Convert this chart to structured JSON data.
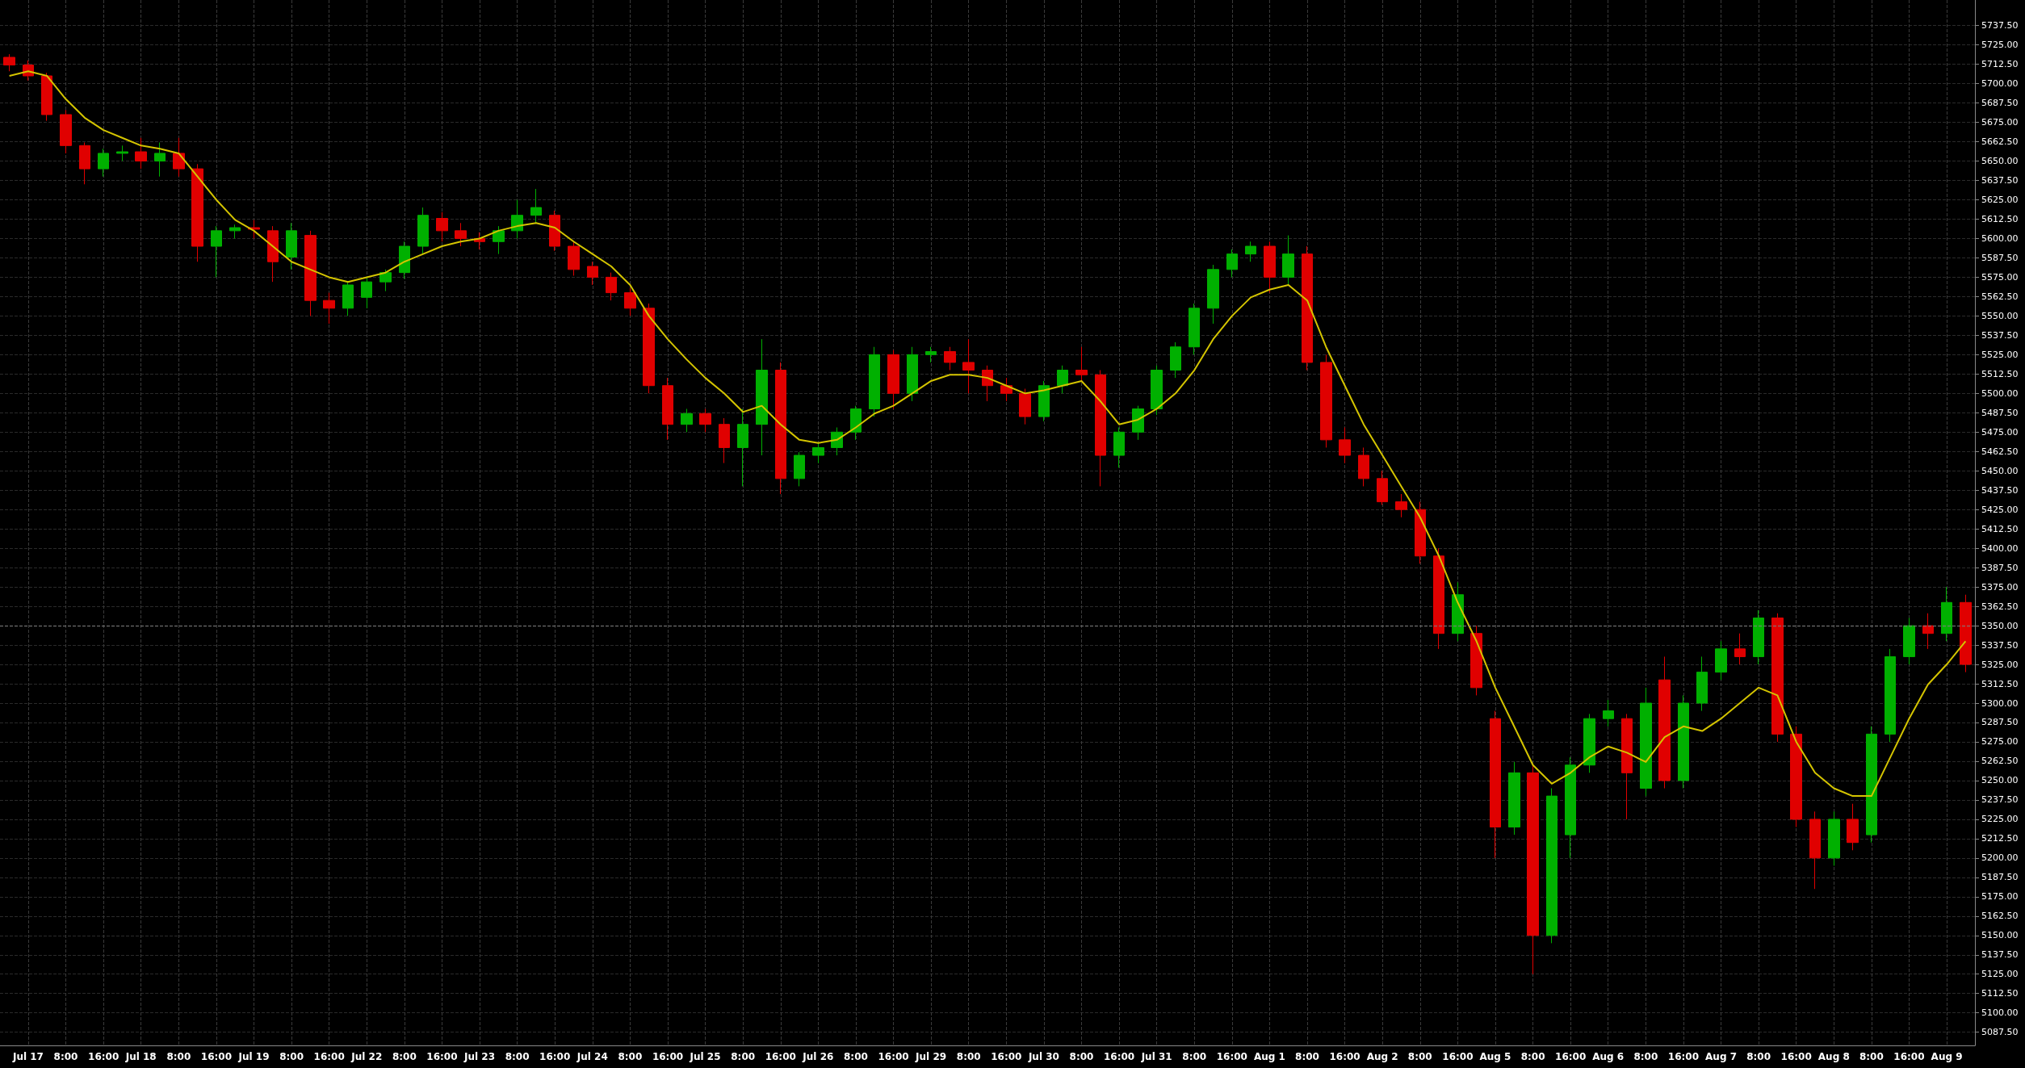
{
  "chart_data": {
    "type": "candlestick",
    "grid": true,
    "categories": [
      null,
      "Jul 17",
      null,
      "8:00",
      null,
      "16:00",
      null,
      "Jul 18",
      null,
      "8:00",
      null,
      "16:00",
      null,
      "Jul 19",
      null,
      "8:00",
      null,
      "16:00",
      null,
      "Jul 22",
      null,
      "8:00",
      null,
      "16:00",
      null,
      "Jul 23",
      null,
      "8:00",
      null,
      "16:00",
      null,
      "Jul 24",
      null,
      "8:00",
      null,
      "16:00",
      null,
      "Jul 25",
      null,
      "8:00",
      null,
      "16:00",
      null,
      "Jul 26",
      null,
      "8:00",
      null,
      "16:00",
      null,
      "Jul 29",
      null,
      "8:00",
      null,
      "16:00",
      null,
      "Jul 30",
      null,
      "8:00",
      null,
      "16:00",
      null,
      "Jul 31",
      null,
      "8:00",
      null,
      "16:00",
      null,
      "Aug 1",
      null,
      "8:00",
      null,
      "16:00",
      null,
      "Aug 2",
      null,
      "8:00",
      null,
      "16:00",
      null,
      "Aug 5",
      null,
      "8:00",
      null,
      "16:00",
      null,
      "Aug 6",
      null,
      "8:00",
      null,
      "16:00",
      null,
      "Aug 7",
      null,
      "8:00",
      null,
      "16:00",
      null,
      "Aug 8",
      null,
      "8:00",
      null,
      "16:00",
      null,
      "Aug 9",
      null
    ],
    "ylim": [
      5079,
      5754
    ],
    "yticks": [
      {
        "value": 5087.5,
        "label": "5087.50"
      },
      {
        "value": 5100,
        "label": "5100.00"
      },
      {
        "value": 5112.5,
        "label": "5112.50"
      },
      {
        "value": 5125,
        "label": "5125.00"
      },
      {
        "value": 5137.5,
        "label": "5137.50"
      },
      {
        "value": 5150,
        "label": "5150.00"
      },
      {
        "value": 5162.5,
        "label": "5162.50"
      },
      {
        "value": 5175,
        "label": "5175.00"
      },
      {
        "value": 5187.5,
        "label": "5187.50"
      },
      {
        "value": 5200,
        "label": "5200.00"
      },
      {
        "value": 5212.5,
        "label": "5212.50"
      },
      {
        "value": 5225,
        "label": "5225.00"
      },
      {
        "value": 5237.5,
        "label": "5237.50"
      },
      {
        "value": 5250,
        "label": "5250.00"
      },
      {
        "value": 5262.5,
        "label": "5262.50"
      },
      {
        "value": 5275,
        "label": "5275.00"
      },
      {
        "value": 5287.5,
        "label": "5287.50"
      },
      {
        "value": 5300,
        "label": "5300.00"
      },
      {
        "value": 5312.5,
        "label": "5312.50"
      },
      {
        "value": 5325,
        "label": "5325.00"
      },
      {
        "value": 5337.5,
        "label": "5337.50"
      },
      {
        "value": 5350,
        "label": "5350.00"
      },
      {
        "value": 5362.5,
        "label": "5362.50"
      },
      {
        "value": 5375,
        "label": "5375.00"
      },
      {
        "value": 5387.5,
        "label": "5387.50"
      },
      {
        "value": 5400,
        "label": "5400.00"
      },
      {
        "value": 5412.5,
        "label": "5412.50"
      },
      {
        "value": 5425,
        "label": "5425.00"
      },
      {
        "value": 5437.5,
        "label": "5437.50"
      },
      {
        "value": 5450,
        "label": "5450.00"
      },
      {
        "value": 5462.5,
        "label": "5462.50"
      },
      {
        "value": 5475,
        "label": "5475.00"
      },
      {
        "value": 5487.5,
        "label": "5487.50"
      },
      {
        "value": 5500,
        "label": "5500.00"
      },
      {
        "value": 5512.5,
        "label": "5512.50"
      },
      {
        "value": 5525,
        "label": "5525.00"
      },
      {
        "value": 5537.5,
        "label": "5537.50"
      },
      {
        "value": 5550,
        "label": "5550.00"
      },
      {
        "value": 5562.5,
        "label": "5562.50"
      },
      {
        "value": 5575,
        "label": "5575.00"
      },
      {
        "value": 5587.5,
        "label": "5587.50"
      },
      {
        "value": 5600,
        "label": "5600.00"
      },
      {
        "value": 5612.5,
        "label": "5612.50"
      },
      {
        "value": 5625,
        "label": "5625.00"
      },
      {
        "value": 5637.5,
        "label": "5637.50"
      },
      {
        "value": 5650,
        "label": "5650.00"
      },
      {
        "value": 5662.5,
        "label": "5662.50"
      },
      {
        "value": 5675,
        "label": "5675.00"
      },
      {
        "value": 5687.5,
        "label": "5687.50"
      },
      {
        "value": 5700,
        "label": "5700.00"
      },
      {
        "value": 5712.5,
        "label": "5712.50"
      },
      {
        "value": 5725,
        "label": "5725.00"
      },
      {
        "value": 5737.5,
        "label": "5737.50"
      }
    ],
    "ref_lines": [
      {
        "axis": "y",
        "value": 5350,
        "color": "#808080",
        "line_style": "dashed"
      }
    ],
    "series": [
      {
        "ohlc": [
          [
            5717,
            5719,
            5708,
            5712
          ],
          [
            5712,
            5715,
            5702,
            5705
          ],
          [
            5705,
            5707,
            5676,
            5680
          ],
          [
            5680,
            5683,
            5655,
            5660
          ],
          [
            5660,
            5662,
            5635,
            5645
          ],
          [
            5645,
            5658,
            5640,
            5655
          ],
          [
            5655,
            5660,
            5650,
            5656
          ],
          [
            5656,
            5665,
            5645,
            5650
          ],
          [
            5650,
            5662,
            5640,
            5655
          ],
          [
            5655,
            5665,
            5640,
            5645
          ],
          [
            5645,
            5648,
            5585,
            5595
          ],
          [
            5595,
            5608,
            5575,
            5605
          ],
          [
            5605,
            5609,
            5600,
            5607
          ],
          [
            5607,
            5612,
            5600,
            5606
          ],
          [
            5605,
            5608,
            5572,
            5585
          ],
          [
            5588,
            5610,
            5580,
            5605
          ],
          [
            5602,
            5605,
            5550,
            5560
          ],
          [
            5560,
            5565,
            5545,
            5555
          ],
          [
            5555,
            5572,
            5550,
            5570
          ],
          [
            5562,
            5575,
            5555,
            5572
          ],
          [
            5572,
            5580,
            5566,
            5578
          ],
          [
            5578,
            5598,
            5574,
            5595
          ],
          [
            5595,
            5620,
            5590,
            5615
          ],
          [
            5613,
            5617,
            5598,
            5605
          ],
          [
            5605,
            5610,
            5595,
            5600
          ],
          [
            5600,
            5604,
            5593,
            5598
          ],
          [
            5598,
            5608,
            5590,
            5605
          ],
          [
            5605,
            5625,
            5600,
            5615
          ],
          [
            5615,
            5632,
            5610,
            5620
          ],
          [
            5615,
            5618,
            5592,
            5595
          ],
          [
            5595,
            5598,
            5576,
            5580
          ],
          [
            5582,
            5585,
            5570,
            5575
          ],
          [
            5575,
            5578,
            5560,
            5565
          ],
          [
            5565,
            5568,
            5550,
            5555
          ],
          [
            5555,
            5558,
            5500,
            5505
          ],
          [
            5505,
            5510,
            5470,
            5480
          ],
          [
            5480,
            5490,
            5475,
            5487
          ],
          [
            5487,
            5490,
            5475,
            5480
          ],
          [
            5480,
            5484,
            5455,
            5465
          ],
          [
            5465,
            5490,
            5440,
            5480
          ],
          [
            5480,
            5535,
            5460,
            5515
          ],
          [
            5515,
            5520,
            5435,
            5445
          ],
          [
            5445,
            5462,
            5440,
            5460
          ],
          [
            5460,
            5468,
            5455,
            5465
          ],
          [
            5465,
            5478,
            5460,
            5475
          ],
          [
            5475,
            5492,
            5470,
            5490
          ],
          [
            5490,
            5530,
            5485,
            5525
          ],
          [
            5525,
            5528,
            5490,
            5500
          ],
          [
            5500,
            5530,
            5495,
            5525
          ],
          [
            5525,
            5530,
            5520,
            5527
          ],
          [
            5527,
            5530,
            5515,
            5520
          ],
          [
            5520,
            5535,
            5500,
            5515
          ],
          [
            5515,
            5518,
            5495,
            5505
          ],
          [
            5505,
            5510,
            5495,
            5500
          ],
          [
            5500,
            5503,
            5480,
            5485
          ],
          [
            5485,
            5508,
            5482,
            5505
          ],
          [
            5505,
            5518,
            5500,
            5515
          ],
          [
            5515,
            5530,
            5508,
            5512
          ],
          [
            5512,
            5515,
            5440,
            5460
          ],
          [
            5460,
            5478,
            5452,
            5475
          ],
          [
            5475,
            5492,
            5470,
            5490
          ],
          [
            5490,
            5518,
            5486,
            5515
          ],
          [
            5515,
            5533,
            5510,
            5530
          ],
          [
            5530,
            5558,
            5525,
            5555
          ],
          [
            5555,
            5583,
            5545,
            5580
          ],
          [
            5580,
            5593,
            5575,
            5590
          ],
          [
            5590,
            5598,
            5585,
            5595
          ],
          [
            5595,
            5598,
            5565,
            5575
          ],
          [
            5575,
            5602,
            5570,
            5590
          ],
          [
            5590,
            5595,
            5515,
            5520
          ],
          [
            5520,
            5525,
            5465,
            5470
          ],
          [
            5470,
            5478,
            5455,
            5460
          ],
          [
            5460,
            5465,
            5440,
            5445
          ],
          [
            5445,
            5450,
            5428,
            5430
          ],
          [
            5430,
            5435,
            5420,
            5425
          ],
          [
            5425,
            5430,
            5390,
            5395
          ],
          [
            5395,
            5400,
            5335,
            5345
          ],
          [
            5345,
            5378,
            5340,
            5370
          ],
          [
            5345,
            5350,
            5305,
            5310
          ],
          [
            5290,
            5295,
            5200,
            5220
          ],
          [
            5220,
            5262,
            5215,
            5255
          ],
          [
            5255,
            5260,
            5125,
            5150
          ],
          [
            5150,
            5245,
            5145,
            5240
          ],
          [
            5215,
            5265,
            5200,
            5260
          ],
          [
            5260,
            5293,
            5255,
            5290
          ],
          [
            5290,
            5302,
            5285,
            5295
          ],
          [
            5290,
            5293,
            5225,
            5255
          ],
          [
            5245,
            5310,
            5240,
            5300
          ],
          [
            5315,
            5330,
            5245,
            5250
          ],
          [
            5250,
            5305,
            5245,
            5300
          ],
          [
            5300,
            5330,
            5295,
            5320
          ],
          [
            5320,
            5340,
            5315,
            5335
          ],
          [
            5335,
            5345,
            5325,
            5330
          ],
          [
            5330,
            5360,
            5325,
            5355
          ],
          [
            5355,
            5358,
            5275,
            5280
          ],
          [
            5280,
            5285,
            5220,
            5225
          ],
          [
            5225,
            5230,
            5180,
            5200
          ],
          [
            5200,
            5230,
            5195,
            5225
          ],
          [
            5225,
            5235,
            5205,
            5210
          ],
          [
            5215,
            5285,
            5210,
            5280
          ],
          [
            5280,
            5335,
            5275,
            5330
          ],
          [
            5330,
            5355,
            5325,
            5350
          ],
          [
            5350,
            5358,
            5335,
            5345
          ],
          [
            5345,
            5375,
            5340,
            5365
          ],
          [
            5365,
            5370,
            5320,
            5325
          ]
        ],
        "colors": [
          "#e00000",
          "#e00000",
          "#e00000",
          "#e00000",
          "#e00000",
          "#00b000",
          "#00b000",
          "#e00000",
          "#00b000",
          "#e00000",
          "#e00000",
          "#00b000",
          "#00b000",
          "#e00000",
          "#e00000",
          "#00b000",
          "#e00000",
          "#e00000",
          "#00b000",
          "#00b000",
          "#00b000",
          "#00b000",
          "#00b000",
          "#e00000",
          "#e00000",
          "#e00000",
          "#00b000",
          "#00b000",
          "#00b000",
          "#e00000",
          "#e00000",
          "#e00000",
          "#e00000",
          "#e00000",
          "#e00000",
          "#e00000",
          "#00b000",
          "#e00000",
          "#e00000",
          "#00b000",
          "#00b000",
          "#e00000",
          "#00b000",
          "#00b000",
          "#00b000",
          "#00b000",
          "#00b000",
          "#e00000",
          "#00b000",
          "#00b000",
          "#e00000",
          "#e00000",
          "#e00000",
          "#e00000",
          "#e00000",
          "#00b000",
          "#00b000",
          "#e00000",
          "#e00000",
          "#00b000",
          "#00b000",
          "#00b000",
          "#00b000",
          "#00b000",
          "#00b000",
          "#00b000",
          "#00b000",
          "#e00000",
          "#00b000",
          "#e00000",
          "#e00000",
          "#e00000",
          "#e00000",
          "#e00000",
          "#e00000",
          "#e00000",
          "#e00000",
          "#00b000",
          "#e00000",
          "#e00000",
          "#00b000",
          "#e00000",
          "#00b000",
          "#00b000",
          "#00b000",
          "#00b000",
          "#e00000",
          "#00b000",
          "#e00000",
          "#00b000",
          "#00b000",
          "#00b000",
          "#e00000",
          "#00b000",
          "#e00000",
          "#e00000",
          "#e00000",
          "#00b000",
          "#e00000",
          "#00b000",
          "#00b000",
          "#00b000",
          "#e00000",
          "#00b000",
          "#e00000"
        ]
      },
      {
        "type": "line",
        "color": "#d4c400",
        "marker": "none",
        "line_style": "solid",
        "values": [
          5705,
          5708,
          5705,
          5690,
          5678,
          5670,
          5665,
          5660,
          5658,
          5655,
          5640,
          5625,
          5612,
          5605,
          5595,
          5585,
          5580,
          5575,
          5572,
          5575,
          5578,
          5585,
          5590,
          5595,
          5598,
          5600,
          5605,
          5608,
          5610,
          5607,
          5598,
          5590,
          5582,
          5570,
          5550,
          5535,
          5522,
          5510,
          5500,
          5488,
          5492,
          5480,
          5470,
          5468,
          5470,
          5478,
          5487,
          5492,
          5500,
          5508,
          5512,
          5512,
          5510,
          5505,
          5500,
          5502,
          5505,
          5508,
          5495,
          5480,
          5483,
          5490,
          5500,
          5515,
          5535,
          5550,
          5562,
          5567,
          5570,
          5560,
          5530,
          5505,
          5480,
          5460,
          5440,
          5420,
          5395,
          5365,
          5340,
          5310,
          5285,
          5260,
          5248,
          5255,
          5265,
          5272,
          5268,
          5262,
          5278,
          5285,
          5282,
          5290,
          5300,
          5310,
          5305,
          5275,
          5255,
          5245,
          5240,
          5240,
          5265,
          5290,
          5312,
          5325,
          5340
        ]
      }
    ]
  }
}
